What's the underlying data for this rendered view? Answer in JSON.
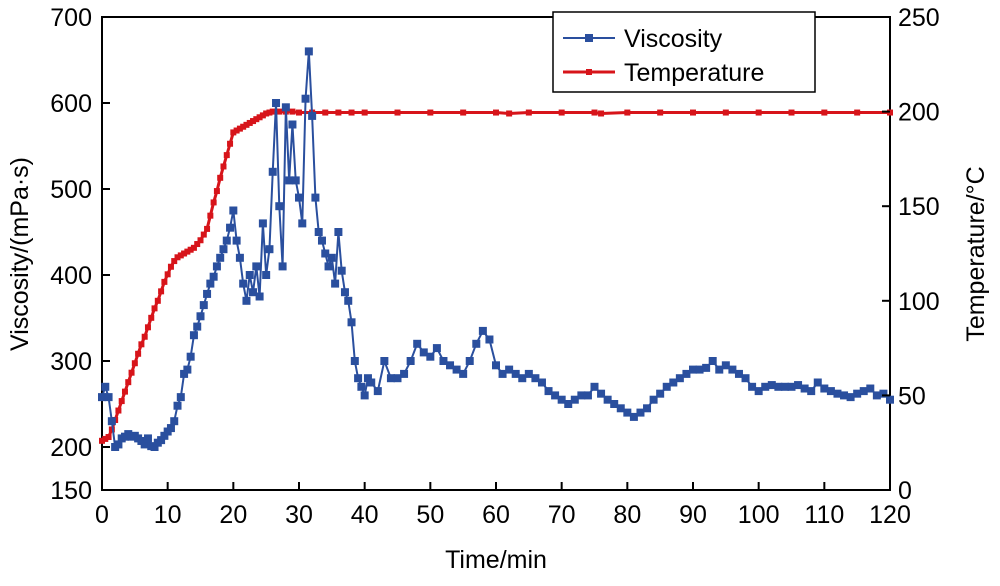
{
  "chart_data": {
    "type": "line",
    "title": "",
    "xlabel": "Time/min",
    "ylabel": "Viscosity/(mPa·s)",
    "y2label": "Temperature/°C",
    "xlim": [
      0,
      120
    ],
    "ylim": [
      150,
      700
    ],
    "y2lim": [
      0,
      250
    ],
    "xticks": [
      0,
      10,
      20,
      30,
      40,
      50,
      60,
      70,
      80,
      90,
      100,
      110,
      120
    ],
    "yticks": [
      150,
      200,
      300,
      400,
      500,
      600,
      700
    ],
    "y2ticks": [
      0,
      50,
      100,
      150,
      200,
      250
    ],
    "grid": false,
    "legend": "top-right",
    "series": [
      {
        "name": "Viscosity",
        "axis": "left",
        "color": "#2a4f9e",
        "x": [
          0,
          0.5,
          1,
          1.5,
          2,
          2.5,
          3,
          3.5,
          4,
          4.5,
          5,
          5.5,
          6,
          6.5,
          7,
          7.5,
          8,
          8.5,
          9,
          9.5,
          10,
          10.5,
          11,
          11.5,
          12,
          12.5,
          13,
          13.5,
          14,
          14.5,
          15,
          15.5,
          16,
          16.5,
          17,
          17.5,
          18,
          18.5,
          19,
          19.5,
          20,
          20.5,
          21,
          21.5,
          22,
          22.5,
          23,
          23.5,
          24,
          24.5,
          25,
          25.5,
          26,
          26.5,
          27,
          27.5,
          28,
          28.5,
          29,
          29.5,
          30,
          30.5,
          31,
          31.5,
          32,
          32.5,
          33,
          33.5,
          34,
          34.5,
          35,
          35.5,
          36,
          36.5,
          37,
          37.5,
          38,
          38.5,
          39,
          39.5,
          40,
          40.5,
          41,
          42,
          43,
          44,
          45,
          46,
          47,
          48,
          49,
          50,
          51,
          52,
          53,
          54,
          55,
          56,
          57,
          58,
          59,
          60,
          61,
          62,
          63,
          64,
          65,
          66,
          67,
          68,
          69,
          70,
          71,
          72,
          73,
          74,
          75,
          76,
          77,
          78,
          79,
          80,
          81,
          82,
          83,
          84,
          85,
          86,
          87,
          88,
          89,
          90,
          91,
          92,
          93,
          94,
          95,
          96,
          97,
          98,
          99,
          100,
          101,
          102,
          103,
          104,
          105,
          106,
          107,
          108,
          109,
          110,
          111,
          112,
          113,
          114,
          115,
          116,
          117,
          118,
          119,
          120
        ],
        "y": [
          258,
          270,
          258,
          230,
          200,
          203,
          210,
          212,
          215,
          212,
          213,
          210,
          207,
          203,
          210,
          201,
          200,
          205,
          208,
          213,
          218,
          222,
          230,
          248,
          258,
          285,
          290,
          305,
          330,
          340,
          352,
          365,
          378,
          390,
          398,
          410,
          420,
          430,
          440,
          455,
          475,
          440,
          420,
          390,
          370,
          400,
          380,
          410,
          375,
          460,
          400,
          430,
          520,
          600,
          480,
          410,
          595,
          510,
          575,
          510,
          490,
          460,
          605,
          660,
          585,
          490,
          450,
          440,
          425,
          410,
          420,
          390,
          450,
          405,
          380,
          370,
          345,
          300,
          280,
          270,
          260,
          280,
          275,
          265,
          300,
          280,
          280,
          285,
          300,
          320,
          310,
          305,
          315,
          300,
          295,
          290,
          285,
          300,
          320,
          335,
          325,
          295,
          285,
          290,
          285,
          280,
          285,
          280,
          275,
          265,
          260,
          255,
          250,
          255,
          260,
          260,
          270,
          262,
          255,
          250,
          245,
          240,
          235,
          240,
          245,
          255,
          262,
          270,
          275,
          280,
          285,
          290,
          290,
          292,
          300,
          290,
          295,
          290,
          285,
          280,
          270,
          265,
          270,
          272,
          270,
          270,
          270,
          272,
          268,
          265,
          275,
          268,
          265,
          262,
          260,
          258,
          262,
          265,
          268,
          260,
          262,
          255
        ]
      },
      {
        "name": "Temperature",
        "axis": "right",
        "color": "#d7141a",
        "x": [
          0,
          0.5,
          1,
          1.5,
          2,
          2.5,
          3,
          3.5,
          4,
          4.5,
          5,
          5.5,
          6,
          6.5,
          7,
          7.5,
          8,
          8.5,
          9,
          9.5,
          10,
          10.5,
          11,
          11.5,
          12,
          12.5,
          13,
          13.5,
          14,
          14.5,
          15,
          15.5,
          16,
          16.5,
          17,
          17.5,
          18,
          18.5,
          19,
          19.5,
          20,
          20.5,
          21,
          21.5,
          22,
          22.5,
          23,
          23.5,
          24,
          24.5,
          25,
          25.5,
          26,
          27,
          28,
          29,
          30,
          32,
          34,
          36,
          38,
          40,
          45,
          50,
          55,
          60,
          62,
          65,
          70,
          75,
          76,
          80,
          85,
          90,
          95,
          100,
          105,
          110,
          115,
          120
        ],
        "y": [
          26,
          27,
          28,
          32,
          37,
          42,
          47,
          52,
          57,
          62,
          67,
          72,
          77,
          81,
          86,
          91,
          96,
          100,
          105,
          110,
          114,
          118,
          121,
          123,
          124,
          125,
          126,
          127,
          128,
          130,
          132,
          135,
          138,
          145,
          152,
          158,
          165,
          171,
          177,
          183,
          189,
          190,
          191,
          192,
          193,
          194,
          195,
          196,
          197,
          198,
          199,
          199.5,
          200,
          200,
          200,
          200,
          199.5,
          199.5,
          199.5,
          199.5,
          199.5,
          199.5,
          199.5,
          199.5,
          199.5,
          199.5,
          199,
          199.5,
          199.5,
          199.5,
          199,
          199.5,
          199.5,
          199.5,
          199.5,
          199.5,
          199.5,
          199.5,
          199.5,
          199.5
        ]
      }
    ]
  }
}
